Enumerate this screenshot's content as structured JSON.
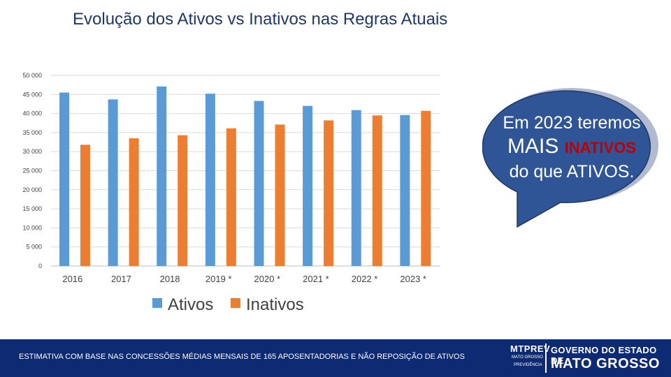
{
  "title": "Evolução dos Ativos vs Inativos nas Regras Atuais",
  "chart_data": {
    "type": "bar",
    "categories": [
      "2016",
      "2017",
      "2018",
      "2019 *",
      "2020 *",
      "2021 *",
      "2022 *",
      "2023 *"
    ],
    "series": [
      {
        "name": "Ativos",
        "color": "#5b9bd5",
        "values": [
          45500,
          43700,
          47100,
          45200,
          43300,
          42000,
          40900,
          39600
        ]
      },
      {
        "name": "Inativos",
        "color": "#ed7d31",
        "values": [
          31800,
          33500,
          34300,
          36100,
          37100,
          38200,
          39500,
          40700
        ]
      }
    ],
    "yticks": [
      "0",
      "5 000",
      "10 000",
      "15 000",
      "20 000",
      "25 000",
      "30 000",
      "35 000",
      "40 000",
      "45 000",
      "50 000"
    ],
    "ylim": [
      0,
      50000
    ],
    "grid": true,
    "legend_position": "bottom"
  },
  "callout": {
    "line1": "Em 2023 teremos",
    "line2_prefix": "MAIS",
    "line2_highlight": "INATIVOS",
    "line3": "do que ATIVOS.",
    "fill_color": "#2f5597"
  },
  "footer": {
    "note": "ESTIMATIVA COM BASE NAS CONCESSÕES MÉDIAS MENSAIS DE 165 APOSENTADORIAS E NÃO REPOSIÇÃO DE ATIVOS",
    "background_color": "#0e2a72"
  },
  "logo": {
    "mtprev": "MTPREV",
    "mtprev_sub1": "MATO GROSSO",
    "mtprev_sub2": "PREVIDÊNCIA",
    "gov": "GOVERNO DO ESTADO DE",
    "state": "MATO GROSSO"
  }
}
